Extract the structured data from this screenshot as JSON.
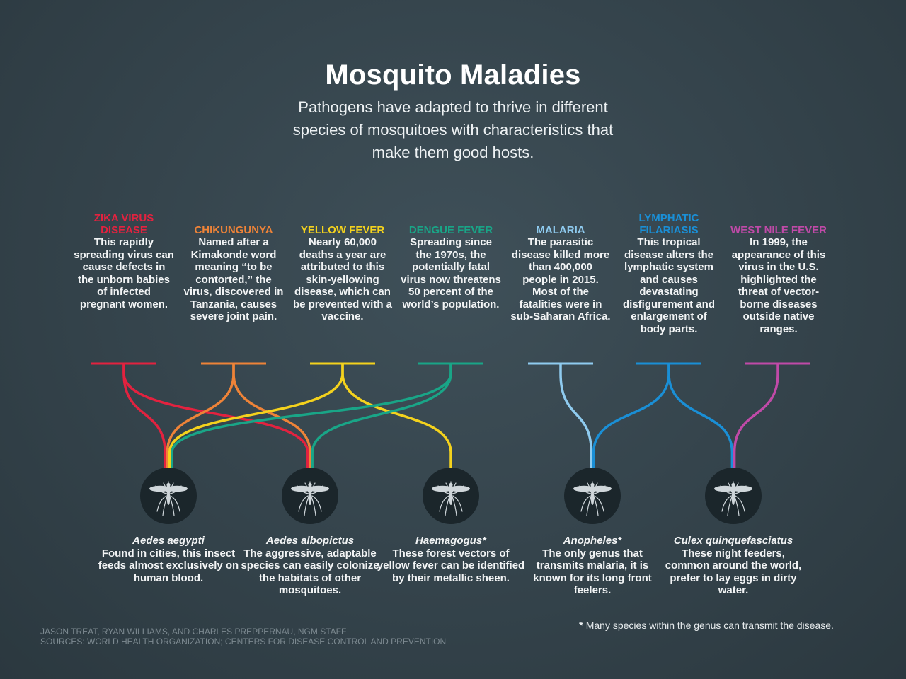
{
  "title": "Mosquito Maladies",
  "subtitle": "Pathogens have adapted to thrive in different species of mosquitoes with characteristics that make them good hosts.",
  "diseases": [
    {
      "name": "Zika virus disease",
      "color": "#e3223f",
      "description": "This rapidly spreading virus can cause defects in the unborn babies of infected pregnant women."
    },
    {
      "name": "Chikungunya",
      "color": "#ee8338",
      "description": "Named after a Kimakonde word meaning “to be contorted,” the virus, discovered in Tanzania, causes severe joint pain."
    },
    {
      "name": "Yellow fever",
      "color": "#f4d21d",
      "description": "Nearly 60,000 deaths a year are attributed to this skin-yellowing disease, which can be prevented with a vaccine."
    },
    {
      "name": "Dengue fever",
      "color": "#19a587",
      "description": "Spreading since the 1970s, the potentially fatal virus now threatens 50 percent of the world’s population."
    },
    {
      "name": "Malaria",
      "color": "#8fcbef",
      "description": "The parasitic disease killed more than 400,000 people in 2015. Most of the fatalities were in sub-Saharan Africa."
    },
    {
      "name": "Lymphatic filariasis",
      "color": "#1a8fd6",
      "description": "This tropical disease alters the lymphatic system and causes devastating disfigurement and enlargement of body parts."
    },
    {
      "name": "West Nile fever",
      "color": "#c04aa8",
      "description": "In 1999, the appearance of this virus in the U.S. highlighted the threat of vector-borne diseases outside native ranges."
    }
  ],
  "species": [
    {
      "name": "Aedes aegypti",
      "description": "Found in cities, this insect feeds almost exclusively on human blood."
    },
    {
      "name": "Aedes albopictus",
      "description": "The aggressive, adaptable species can easily colonize the habitats of other mosquitoes."
    },
    {
      "name": "Haemagogus*",
      "description": "These forest vectors of yellow fever can be identified by their metallic sheen."
    },
    {
      "name": "Anopheles*",
      "description": "The only genus that transmits malaria, it is known for its long front feelers."
    },
    {
      "name": "Culex quinquefasciatus",
      "description": "These night feeders, common around the world, prefer to lay eggs in dirty water."
    }
  ],
  "links": [
    {
      "disease": "Zika virus disease",
      "species": [
        "Aedes aegypti",
        "Aedes albopictus"
      ]
    },
    {
      "disease": "Chikungunya",
      "species": [
        "Aedes aegypti",
        "Aedes albopictus"
      ]
    },
    {
      "disease": "Yellow fever",
      "species": [
        "Aedes aegypti",
        "Haemagogus*"
      ]
    },
    {
      "disease": "Dengue fever",
      "species": [
        "Aedes aegypti",
        "Aedes albopictus"
      ]
    },
    {
      "disease": "Malaria",
      "species": [
        "Anopheles*"
      ]
    },
    {
      "disease": "Lymphatic filariasis",
      "species": [
        "Anopheles*",
        "Culex quinquefasciatus"
      ]
    },
    {
      "disease": "West Nile fever",
      "species": [
        "Culex quinquefasciatus"
      ]
    }
  ],
  "credits": {
    "line1": "Jason Treat, Ryan Williams, and Charles Preppernau, NGM Staff",
    "line2": "Sources: World Health Organization; Centers for Disease Control and Prevention"
  },
  "footnote": {
    "marker": "*",
    "text": "Many species within the genus can transmit the disease."
  },
  "colors": {
    "background": "#36454d",
    "circle": "#1b262b",
    "mosquito": "#cfd6da"
  },
  "icons": {
    "species": "mosquito-icon"
  }
}
